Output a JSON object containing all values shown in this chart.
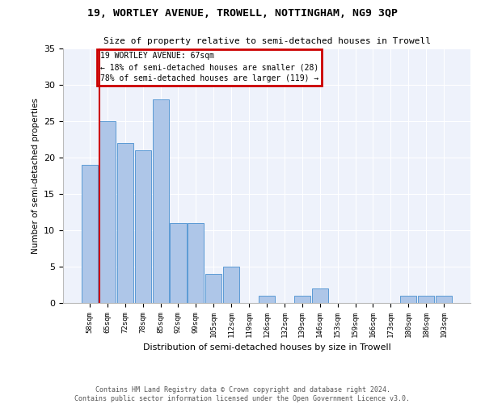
{
  "title": "19, WORTLEY AVENUE, TROWELL, NOTTINGHAM, NG9 3QP",
  "subtitle": "Size of property relative to semi-detached houses in Trowell",
  "xlabel": "Distribution of semi-detached houses by size in Trowell",
  "ylabel": "Number of semi-detached properties",
  "categories": [
    "58sqm",
    "65sqm",
    "72sqm",
    "78sqm",
    "85sqm",
    "92sqm",
    "99sqm",
    "105sqm",
    "112sqm",
    "119sqm",
    "126sqm",
    "132sqm",
    "139sqm",
    "146sqm",
    "153sqm",
    "159sqm",
    "166sqm",
    "173sqm",
    "180sqm",
    "186sqm",
    "193sqm"
  ],
  "values": [
    19,
    25,
    22,
    21,
    28,
    11,
    11,
    4,
    5,
    0,
    1,
    0,
    1,
    2,
    0,
    0,
    0,
    0,
    1,
    1,
    1
  ],
  "bar_color": "#aec6e8",
  "bar_edge_color": "#5b9bd5",
  "annotation_title": "19 WORTLEY AVENUE: 67sqm",
  "annotation_line1": "← 18% of semi-detached houses are smaller (28)",
  "annotation_line2": "78% of semi-detached houses are larger (119) →",
  "annotation_box_color": "#cc0000",
  "ylim": [
    0,
    35
  ],
  "yticks": [
    0,
    5,
    10,
    15,
    20,
    25,
    30,
    35
  ],
  "background_color": "#eef2fb",
  "footer1": "Contains HM Land Registry data © Crown copyright and database right 2024.",
  "footer2": "Contains public sector information licensed under the Open Government Licence v3.0."
}
